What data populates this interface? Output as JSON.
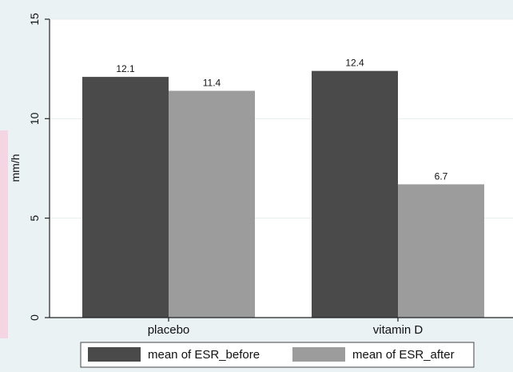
{
  "chart_data": {
    "type": "bar",
    "title": "",
    "xlabel": "",
    "ylabel": "mm/h",
    "categories": [
      "placebo",
      "vitamin D"
    ],
    "series": [
      {
        "name": "mean of ESR_before",
        "values": [
          12.1,
          12.4
        ],
        "color": "#4a4a4a"
      },
      {
        "name": "mean of ESR_after",
        "values": [
          11.4,
          6.7
        ],
        "color": "#9c9c9c"
      }
    ],
    "value_labels": [
      "12.1",
      "12.4",
      "11.4",
      "6.7"
    ],
    "ylim": [
      0,
      15
    ],
    "yticks": [
      0,
      5,
      10,
      15
    ],
    "grid": true,
    "legend_position": "bottom"
  },
  "colors": {
    "page_background": "#eaf2f3",
    "plot_background": "#ffffff",
    "grid": "#e6eef0",
    "axis": "#222222",
    "legend_border": "#444444"
  }
}
